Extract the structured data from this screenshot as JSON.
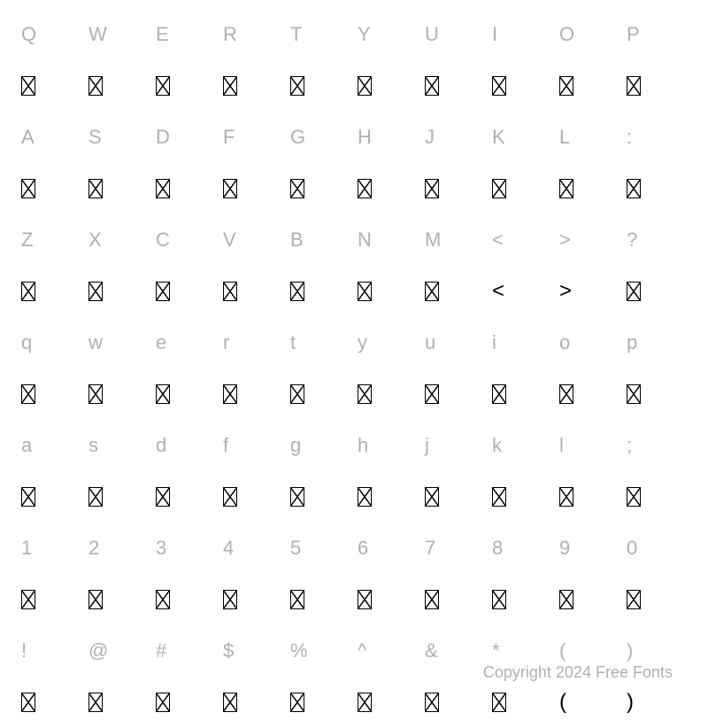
{
  "rows": [
    {
      "labels": [
        "Q",
        "W",
        "E",
        "R",
        "T",
        "Y",
        "U",
        "I",
        "O",
        "P"
      ],
      "glyphs": [
        "",
        "",
        "",
        "",
        "",
        "",
        "",
        "",
        "",
        ""
      ]
    },
    {
      "labels": [
        "A",
        "S",
        "D",
        "F",
        "G",
        "H",
        "J",
        "K",
        "L",
        ":"
      ],
      "glyphs": [
        "",
        "",
        "",
        "",
        "",
        "",
        "",
        "",
        "",
        ""
      ]
    },
    {
      "labels": [
        "Z",
        "X",
        "C",
        "V",
        "B",
        "N",
        "M",
        "<",
        ">",
        "?"
      ],
      "glyphs": [
        "",
        "",
        "",
        "",
        "",
        "",
        "",
        "<",
        ">",
        ""
      ]
    },
    {
      "labels": [
        "q",
        "w",
        "e",
        "r",
        "t",
        "y",
        "u",
        "i",
        "o",
        "p"
      ],
      "glyphs": [
        "",
        "",
        "",
        "",
        "",
        "",
        "",
        "",
        "",
        ""
      ]
    },
    {
      "labels": [
        "a",
        "s",
        "d",
        "f",
        "g",
        "h",
        "j",
        "k",
        "l",
        ";"
      ],
      "glyphs": [
        "",
        "",
        "",
        "",
        "",
        "",
        "",
        "",
        "",
        ""
      ]
    },
    {
      "labels": [
        "1",
        "2",
        "3",
        "4",
        "5",
        "6",
        "7",
        "8",
        "9",
        "0"
      ],
      "glyphs": [
        "",
        "",
        "",
        "",
        "",
        "",
        "",
        "",
        "",
        ""
      ]
    },
    {
      "labels": [
        "!",
        "@",
        "#",
        "$",
        "%",
        "^",
        "&",
        "*",
        "(",
        ")"
      ],
      "glyphs": [
        "",
        "",
        "",
        "",
        "",
        "",
        "",
        "",
        "(",
        ")"
      ]
    }
  ],
  "copyright": "Copyright 2024 Free Fonts",
  "label_color": "#b0b0b0",
  "glyph_color": "#000000",
  "background_color": "#ffffff",
  "label_fontsize": 22,
  "glyph_fontsize": 24,
  "columns": 10
}
